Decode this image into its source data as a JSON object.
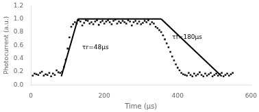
{
  "chart_data": {
    "type": "scatter",
    "xlabel": "Time (μs)",
    "ylabel": "Photocurrent (a.u.)",
    "xlim": [
      0,
      600
    ],
    "ylim": [
      0,
      1.2
    ],
    "xticks": [
      0,
      200,
      400,
      600
    ],
    "yticks": [
      {
        "value": 0.0,
        "label": "0.0"
      },
      0.2,
      0.4,
      0.6,
      0.8,
      {
        "value": 1.0,
        "label": "1.0"
      },
      1.2
    ],
    "grid": false,
    "legend": false,
    "series": [
      {
        "type": "scatter",
        "color": "#111111",
        "marker": "square",
        "x": [
          5,
          10,
          15,
          20,
          25,
          30,
          35,
          40,
          45,
          50,
          55,
          60,
          65,
          70,
          75,
          80,
          85,
          90,
          95,
          100,
          105,
          110,
          115,
          120,
          125,
          130,
          135,
          140,
          145,
          150,
          155,
          160,
          165,
          170,
          175,
          180,
          185,
          190,
          195,
          200,
          205,
          210,
          215,
          220,
          225,
          230,
          235,
          240,
          245,
          250,
          255,
          260,
          265,
          270,
          275,
          280,
          285,
          290,
          295,
          300,
          305,
          310,
          315,
          320,
          325,
          330,
          335,
          340,
          345,
          350,
          355,
          360,
          365,
          370,
          375,
          380,
          385,
          390,
          395,
          400,
          405,
          410,
          415,
          420,
          425,
          430,
          435,
          440,
          445,
          450,
          455,
          460,
          465,
          470,
          475,
          480,
          485,
          490,
          495,
          500,
          505,
          510,
          515,
          520,
          525,
          530,
          535,
          540,
          545,
          550
        ],
        "values": [
          0.14,
          0.17,
          0.16,
          0.15,
          0.18,
          0.2,
          0.14,
          0.16,
          0.15,
          0.18,
          0.13,
          0.17,
          0.15,
          0.22,
          0.19,
          0.18,
          0.2,
          0.27,
          0.38,
          0.55,
          0.72,
          0.88,
          0.92,
          0.95,
          0.93,
          0.98,
          0.96,
          0.9,
          0.94,
          0.98,
          0.97,
          0.93,
          0.95,
          0.92,
          0.96,
          0.98,
          0.91,
          0.95,
          0.97,
          0.93,
          0.96,
          0.98,
          0.95,
          0.92,
          0.97,
          0.99,
          0.93,
          0.96,
          0.94,
          0.97,
          0.95,
          0.93,
          0.98,
          0.96,
          0.9,
          0.95,
          0.97,
          0.93,
          0.96,
          0.92,
          0.94,
          0.97,
          0.95,
          0.98,
          0.92,
          0.95,
          0.93,
          0.88,
          0.86,
          0.83,
          0.8,
          0.75,
          0.69,
          0.63,
          0.57,
          0.5,
          0.43,
          0.37,
          0.31,
          0.26,
          0.22,
          0.18,
          0.16,
          0.15,
          0.14,
          0.18,
          0.15,
          0.13,
          0.17,
          0.14,
          0.16,
          0.19,
          0.15,
          0.13,
          0.17,
          0.14,
          0.16,
          0.18,
          0.13,
          0.15,
          0.17,
          0.14,
          0.16,
          0.18,
          0.13,
          0.15,
          0.17,
          0.14,
          0.16,
          0.18
        ]
      },
      {
        "type": "line",
        "color": "#000000",
        "line_style": "solid",
        "x": [
          83,
          128
        ],
        "values": [
          0.13,
          1.0
        ]
      },
      {
        "type": "line",
        "color": "#000000",
        "line_style": "solid",
        "x": [
          128,
          355
        ],
        "values": [
          1.0,
          1.0
        ]
      },
      {
        "type": "line",
        "color": "#000000",
        "line_style": "solid",
        "x": [
          355,
          520
        ],
        "values": [
          1.0,
          0.13
        ]
      }
    ],
    "annotations": [
      {
        "text": "τr=48μs",
        "x": 140,
        "y": 0.57
      },
      {
        "text": "τf=180μs",
        "x": 385,
        "y": 0.72
      }
    ]
  }
}
